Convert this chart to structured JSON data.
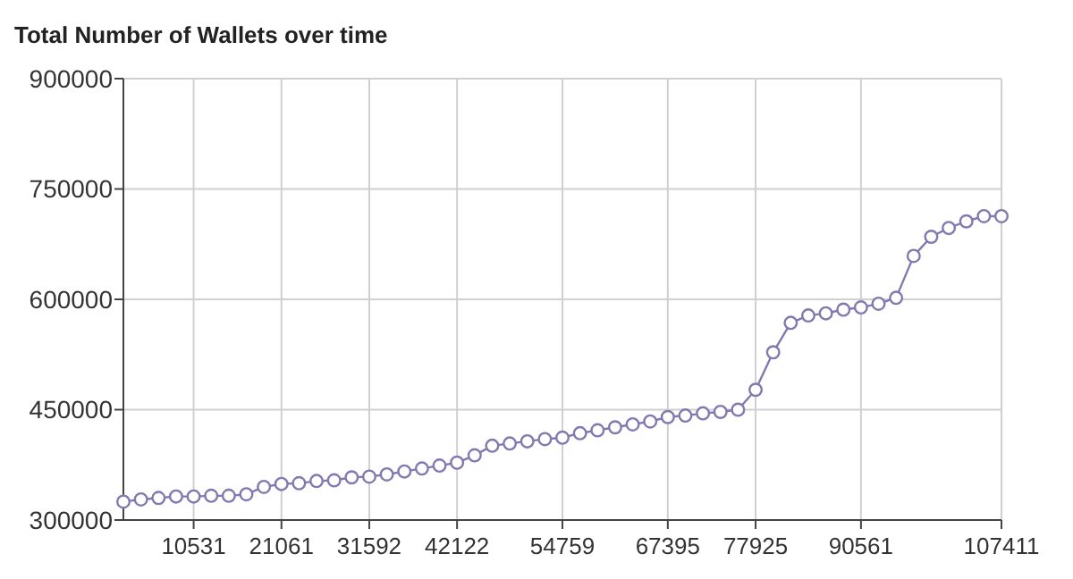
{
  "chart_data": {
    "type": "line",
    "title": "Total Number of Wallets over time",
    "x": [
      2106,
      4212,
      6318,
      8424,
      10531,
      12637,
      14743,
      16849,
      18955,
      21061,
      23167,
      25273,
      27379,
      29485,
      31592,
      33698,
      35804,
      37910,
      40016,
      42122,
      44228,
      46334,
      48440,
      50546,
      52653,
      54759,
      56865,
      58971,
      61077,
      63183,
      65289,
      67395,
      69501,
      71607,
      73713,
      75820,
      77925,
      80032,
      82138,
      84244,
      86350,
      88456,
      90561,
      92668,
      94774,
      96880,
      98986,
      101092,
      103198,
      105304,
      107411
    ],
    "series": [
      {
        "color": "#8478b0",
        "values": [
          325000,
          328000,
          330000,
          332000,
          332000,
          333000,
          333000,
          335000,
          345000,
          349000,
          350000,
          353000,
          354000,
          358000,
          359000,
          362000,
          366000,
          370000,
          374000,
          378000,
          388000,
          401000,
          404000,
          407000,
          410000,
          412000,
          418000,
          422000,
          426000,
          430000,
          434000,
          440000,
          442000,
          445000,
          447000,
          450000,
          477000,
          528000,
          568000,
          578000,
          581000,
          586000,
          589000,
          594000,
          602000,
          659000,
          685000,
          697000,
          706000,
          713000,
          713000
        ]
      }
    ],
    "xlim": [
      2106,
      107411
    ],
    "xticks": [
      10531,
      21061,
      31592,
      42122,
      54759,
      67395,
      77925,
      90561,
      107411
    ],
    "ylim": [
      300000,
      900000
    ],
    "yticks": [
      300000,
      450000,
      600000,
      750000,
      900000
    ],
    "grid": true,
    "marker": "circle",
    "line_style": "solid"
  }
}
